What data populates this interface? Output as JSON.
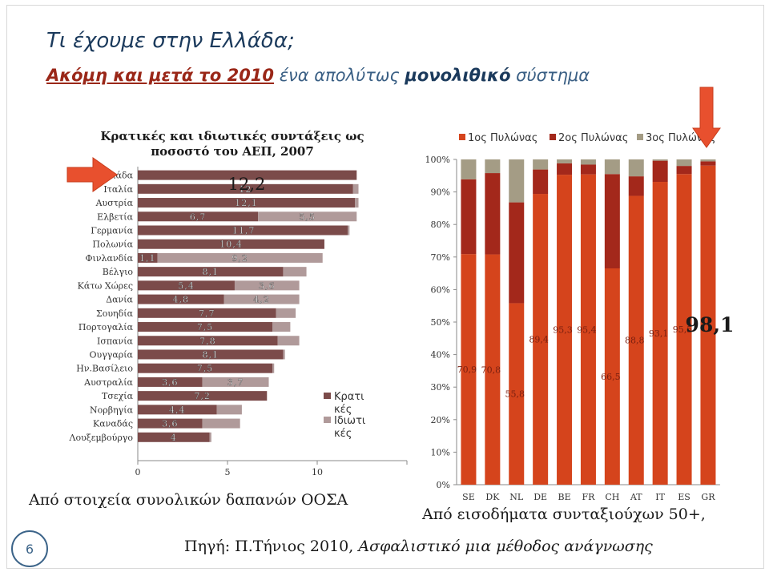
{
  "slide": {
    "title": "Τι έχουμε στην Ελλάδα;",
    "subtitle_red": "Ακόμη και μετά το 2010",
    "subtitle_mid": " ένα απολύτως ",
    "subtitle_bold": "μονολιθικό",
    "subtitle_end": " σύστημα",
    "left_caption": "Από στοιχεία συνολικών δαπανών ΟΟΣΑ",
    "right_caption": "Από εισοδήματα συνταξιούχων 50+,",
    "source_prefix": "Πηγή: Π.Τήνιος 2010, ",
    "source_italic": "Ασφαλιστικό μια μέθοδος ανάγνωσης",
    "page_number": "6",
    "colors": {
      "title": "#1b3a5c",
      "accent_red": "#9a2718",
      "arrow": "#e8502e"
    }
  },
  "chart_data": [
    {
      "type": "bar",
      "orientation": "horizontal",
      "stacked": true,
      "title": "Κρατικές και ιδιωτικές συντάξεις ως ποσοστό του ΑΕΠ, 2007",
      "title_lines": [
        "Κρατικές και ιδιωτικές συντάξεις ως",
        "ποσοστό του ΑΕΠ, 2007"
      ],
      "categories": [
        "Ελλάδα",
        "Ιταλία",
        "Αυστρία",
        "Ελβετία",
        "Γερμανία",
        "Πολωνία",
        "Φινλανδία",
        "Βέλγιο",
        "Κάτω Χώρες",
        "Δανία",
        "Σουηδία",
        "Πορτογαλία",
        "Ισπανία",
        "Ουγγαρία",
        "Ην.Βασίλειο",
        "Αυστραλία",
        "Τσεχία",
        "Νορβηγία",
        "Καναδάς",
        "Λουξεμβούργο"
      ],
      "series": [
        {
          "name": "Κρατικές",
          "color": "#7b4b4a",
          "values": [
            12.2,
            12.0,
            12.1,
            6.7,
            11.7,
            10.4,
            1.1,
            8.1,
            5.4,
            4.8,
            7.7,
            7.5,
            7.8,
            8.1,
            7.5,
            3.6,
            7.2,
            4.4,
            3.6,
            4.0
          ]
        },
        {
          "name": "Ιδιωτικές",
          "color": "#b09a9a",
          "values": [
            0.0,
            0.3,
            0.2,
            5.5,
            0.1,
            0.0,
            9.2,
            1.3,
            3.6,
            4.2,
            1.1,
            1.0,
            1.2,
            0.1,
            0.1,
            3.7,
            0.0,
            1.4,
            2.1,
            0.1
          ]
        }
      ],
      "labels": {
        "Κρατικές": [
          "",
          "12",
          "12,1",
          "6,7",
          "",
          "",
          "1,1",
          "8,1",
          "5,4",
          "4,8",
          "7,7",
          "7,5",
          "7,8",
          "8,1",
          "7,5",
          "3,6",
          "7,2",
          "4,4",
          "3,6",
          "4"
        ],
        "Ιδιωτικές": [
          "",
          "",
          "",
          "5,5",
          "",
          "",
          "9,2",
          "",
          "3,6",
          "4,2",
          "",
          "",
          "",
          "",
          "",
          "3,7",
          "",
          "",
          "",
          ""
        ],
        "middle": [
          "",
          "",
          "",
          "",
          "11,7",
          "10,4",
          "",
          "",
          "",
          "",
          "",
          "",
          "",
          "",
          "",
          "",
          "",
          "",
          "",
          ""
        ]
      },
      "highlight_label": "12,2",
      "xlim": [
        0,
        15
      ],
      "xticks": [
        "0",
        "5",
        "10"
      ],
      "xtick_values": [
        0,
        5,
        10
      ],
      "legend": [
        "Κρατι κές",
        "Ιδιωτι κές"
      ],
      "legend_lines": [
        [
          "Κρατι",
          "κές"
        ],
        [
          "Ιδιωτι",
          "κές"
        ]
      ],
      "legend_position": "right"
    },
    {
      "type": "bar",
      "orientation": "vertical",
      "stacked_percent": true,
      "categories": [
        "SE",
        "DK",
        "NL",
        "DE",
        "BE",
        "FR",
        "CH",
        "AT",
        "IT",
        "ES",
        "GR"
      ],
      "series": [
        {
          "name": "1ος Πυλώνας",
          "color": "#d5441c",
          "values": [
            70.9,
            70.8,
            55.8,
            89.4,
            95.3,
            95.4,
            66.5,
            88.8,
            93.1,
            95.5,
            98.1
          ]
        },
        {
          "name": "2ος Πυλώνας",
          "color": "#a3281b",
          "values": [
            23.0,
            25.0,
            31.0,
            7.5,
            3.5,
            3.0,
            29.0,
            6.0,
            6.5,
            2.5,
            1.3
          ]
        },
        {
          "name": "3ος Πυλώνας",
          "color": "#a49c85",
          "values": [
            6.1,
            4.2,
            13.2,
            3.1,
            1.2,
            1.6,
            4.5,
            5.2,
            0.4,
            2.0,
            0.6
          ]
        }
      ],
      "value_labels": [
        "70,9",
        "70,8",
        "55,8",
        "89,4",
        "95,3",
        "95,4",
        "66,5",
        "88,8",
        "93,1",
        "95,5",
        ""
      ],
      "highlight_label": "98,1",
      "ylim": [
        0,
        100
      ],
      "yticks": [
        "0%",
        "10%",
        "20%",
        "30%",
        "40%",
        "50%",
        "60%",
        "70%",
        "80%",
        "90%",
        "100%"
      ],
      "legend": [
        "1ος Πυλώνας",
        "2ος Πυλώνας",
        "3ος Πυλώνας"
      ],
      "legend_position": "top"
    }
  ]
}
